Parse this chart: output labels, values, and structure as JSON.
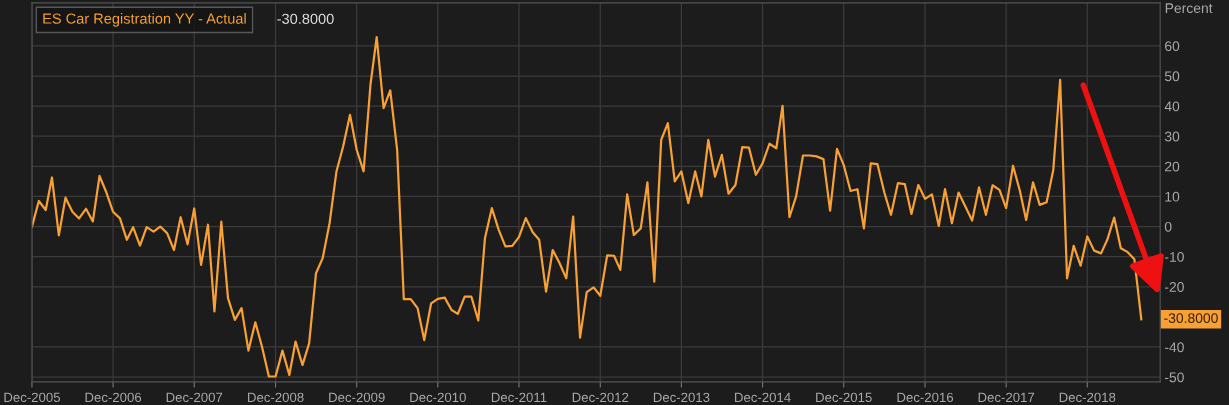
{
  "chart_data": {
    "type": "line",
    "ylabel": "Percent",
    "x": [
      "2005-12",
      "2006-01",
      "2006-02",
      "2006-03",
      "2006-04",
      "2006-05",
      "2006-06",
      "2006-07",
      "2006-08",
      "2006-09",
      "2006-10",
      "2006-11",
      "2006-12",
      "2007-01",
      "2007-02",
      "2007-03",
      "2007-04",
      "2007-05",
      "2007-06",
      "2007-07",
      "2007-08",
      "2007-09",
      "2007-10",
      "2007-11",
      "2007-12",
      "2008-01",
      "2008-02",
      "2008-03",
      "2008-04",
      "2008-05",
      "2008-06",
      "2008-07",
      "2008-08",
      "2008-09",
      "2008-10",
      "2008-11",
      "2008-12",
      "2009-01",
      "2009-02",
      "2009-03",
      "2009-04",
      "2009-05",
      "2009-06",
      "2009-07",
      "2009-08",
      "2009-09",
      "2009-10",
      "2009-11",
      "2009-12",
      "2010-01",
      "2010-02",
      "2010-03",
      "2010-04",
      "2010-05",
      "2010-06",
      "2010-07",
      "2010-08",
      "2010-09",
      "2010-10",
      "2010-11",
      "2010-12",
      "2011-01",
      "2011-02",
      "2011-03",
      "2011-04",
      "2011-05",
      "2011-06",
      "2011-07",
      "2011-08",
      "2011-09",
      "2011-10",
      "2011-11",
      "2011-12",
      "2012-01",
      "2012-02",
      "2012-03",
      "2012-04",
      "2012-05",
      "2012-06",
      "2012-07",
      "2012-08",
      "2012-09",
      "2012-10",
      "2012-11",
      "2012-12",
      "2013-01",
      "2013-02",
      "2013-03",
      "2013-04",
      "2013-05",
      "2013-06",
      "2013-07",
      "2013-08",
      "2013-09",
      "2013-10",
      "2013-11",
      "2013-12",
      "2014-01",
      "2014-02",
      "2014-03",
      "2014-04",
      "2014-05",
      "2014-06",
      "2014-07",
      "2014-08",
      "2014-09",
      "2014-10",
      "2014-11",
      "2014-12",
      "2015-01",
      "2015-02",
      "2015-03",
      "2015-04",
      "2015-05",
      "2015-06",
      "2015-07",
      "2015-08",
      "2015-09",
      "2015-10",
      "2015-11",
      "2015-12",
      "2016-01",
      "2016-02",
      "2016-03",
      "2016-04",
      "2016-05",
      "2016-06",
      "2016-07",
      "2016-08",
      "2016-09",
      "2016-10",
      "2016-11",
      "2016-12",
      "2017-01",
      "2017-02",
      "2017-03",
      "2017-04",
      "2017-05",
      "2017-06",
      "2017-07",
      "2017-08",
      "2017-09",
      "2017-10",
      "2017-11",
      "2017-12",
      "2018-01",
      "2018-02",
      "2018-03",
      "2018-04",
      "2018-05",
      "2018-06",
      "2018-07",
      "2018-08",
      "2018-09",
      "2018-10",
      "2018-11",
      "2018-12",
      "2019-01",
      "2019-02",
      "2019-03",
      "2019-04",
      "2019-05",
      "2019-06",
      "2019-07",
      "2019-08"
    ],
    "series": [
      {
        "name": "ES Car Registration YY - Actual",
        "color": "#f7a035",
        "values": [
          0,
          8.5,
          5.5,
          16.3,
          -2.9,
          9.6,
          4.9,
          2.7,
          5.9,
          1.7,
          16.8,
          11.3,
          4.9,
          2.7,
          -4.4,
          -0.2,
          -6.3,
          -0.2,
          -1.7,
          0,
          -2.2,
          -7.8,
          3.1,
          -5.9,
          6.0,
          -12.7,
          0.6,
          -28.2,
          1.6,
          -23.8,
          -31,
          -27.1,
          -41.2,
          -31.8,
          -39.9,
          -49.8,
          -49.8,
          -41.2,
          -49.3,
          -38.2,
          -46,
          -38.8,
          -15.5,
          -10.5,
          1.1,
          18.3,
          26.6,
          37.1,
          25.5,
          18.3,
          47.1,
          62.9,
          39.3,
          45.2,
          25.5,
          -24.1,
          -24.1,
          -27.1,
          -37.7,
          -25.5,
          -24.0,
          -23.6,
          -27.7,
          -29.0,
          -23.3,
          -23.3,
          -31.2,
          -3.9,
          6.1,
          -1.1,
          -6.6,
          -6.4,
          -3.5,
          2.8,
          -1.9,
          -4.4,
          -21.6,
          -7.8,
          -12.2,
          -17.2,
          3.3,
          -36.9,
          -21.8,
          -20.2,
          -23.0,
          -9.6,
          -9.7,
          -14.4,
          10.7,
          -2.8,
          -0.6,
          14.7,
          -18.3,
          28.8,
          34.3,
          15.0,
          18.3,
          7.8,
          18.3,
          10.0,
          28.8,
          16.6,
          23.8,
          10.9,
          13.8,
          26.4,
          26.2,
          17.2,
          21.0,
          27.5,
          26.0,
          40.1,
          3.1,
          10.0,
          23.6,
          23.6,
          23.3,
          22.4,
          5.3,
          25.8,
          20.5,
          11.8,
          12.4,
          -0.6,
          21.0,
          20.7,
          11.3,
          3.9,
          14.4,
          14.1,
          4.2,
          13.8,
          9.2,
          10.7,
          0.2,
          12.4,
          1.1,
          11.3,
          6.6,
          2.0,
          13.0,
          3.9,
          13.7,
          12.2,
          6.1,
          20.2,
          11.8,
          2.2,
          14.7,
          7.2,
          8.1,
          18.8,
          48.7,
          -17.2,
          -6.4,
          -13.0,
          -3.3,
          -8.0,
          -8.9,
          -4.4,
          3.0,
          -7.2,
          -8.5,
          -10.9,
          -30.8
        ]
      }
    ],
    "annotations": [
      "-30.8000",
      {
        "text": "-30.8000",
        "x": "2019-08",
        "y": -30.8
      }
    ],
    "xlim": [
      "2005-12-01",
      "2019-10-25"
    ],
    "xticks": [
      {
        "value": "2005-12",
        "label": "Dec-2005"
      },
      {
        "value": "2006-12",
        "label": "Dec-2006"
      },
      {
        "value": "2007-12",
        "label": "Dec-2007"
      },
      {
        "value": "2008-12",
        "label": "Dec-2008"
      },
      {
        "value": "2009-12",
        "label": "Dec-2009"
      },
      {
        "value": "2010-12",
        "label": "Dec-2010"
      },
      {
        "value": "2011-12",
        "label": "Dec-2011"
      },
      {
        "value": "2012-12",
        "label": "Dec-2012"
      },
      {
        "value": "2013-12",
        "label": "Dec-2013"
      },
      {
        "value": "2014-12",
        "label": "Dec-2014"
      },
      {
        "value": "2015-12",
        "label": "Dec-2015"
      },
      {
        "value": "2016-12",
        "label": "Dec-2016"
      },
      {
        "value": "2017-12",
        "label": "Dec-2017"
      },
      {
        "value": "2018-12",
        "label": "Dec-2018"
      }
    ],
    "ylim": [
      -51.6,
      74.3
    ],
    "yticks": [
      -50,
      -40,
      -20,
      -10,
      0,
      10,
      20,
      30,
      40,
      50,
      60
    ],
    "grid": true,
    "legend": "top left",
    "marker": "none",
    "line_style": "solid"
  }
}
